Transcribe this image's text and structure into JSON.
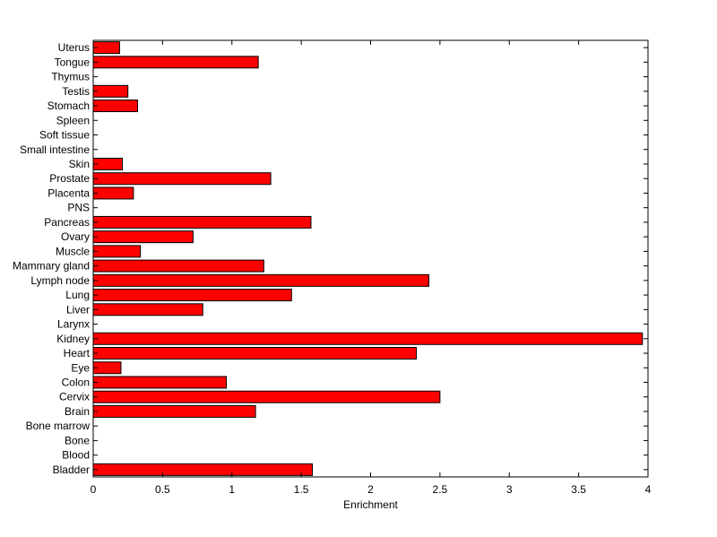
{
  "chart_data": {
    "type": "bar",
    "orientation": "horizontal",
    "xlabel": "Enrichment",
    "ylabel": "",
    "xlim": [
      0,
      4
    ],
    "xticks": [
      0,
      0.5,
      1,
      1.5,
      2,
      2.5,
      3,
      3.5,
      4
    ],
    "grid": false,
    "bar_color": "#ff0000",
    "bar_edge_color": "#000000",
    "categories": [
      "Bladder",
      "Blood",
      "Bone",
      "Bone marrow",
      "Brain",
      "Cervix",
      "Colon",
      "Eye",
      "Heart",
      "Kidney",
      "Larynx",
      "Liver",
      "Lung",
      "Lymph node",
      "Mammary gland",
      "Muscle",
      "Ovary",
      "Pancreas",
      "PNS",
      "Placenta",
      "Prostate",
      "Skin",
      "Small intestine",
      "Soft tissue",
      "Spleen",
      "Stomach",
      "Testis",
      "Thymus",
      "Tongue",
      "Uterus"
    ],
    "values": [
      1.58,
      0,
      0,
      0,
      1.17,
      2.5,
      0.96,
      0.2,
      2.33,
      3.96,
      0,
      0.79,
      1.43,
      2.42,
      1.23,
      0.34,
      0.72,
      1.57,
      0,
      0.29,
      1.28,
      0.21,
      0,
      0,
      0,
      0.32,
      0.25,
      0,
      1.19,
      0.19
    ]
  }
}
